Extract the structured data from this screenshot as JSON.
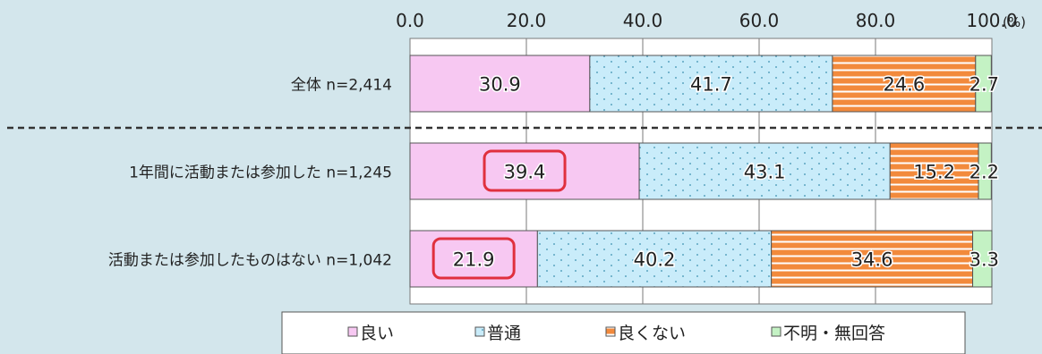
{
  "chart_data": {
    "type": "bar",
    "orientation": "horizontal",
    "stacked": true,
    "unit_label": "(%)",
    "xlim": [
      0,
      100
    ],
    "ticks": [
      "0.0",
      "20.0",
      "40.0",
      "60.0",
      "80.0",
      "100.0"
    ],
    "categories": [
      "全体 n=2,414",
      "1年間に活動または参加した n=1,245",
      "活動または参加したものはない n=1,042"
    ],
    "series": [
      {
        "name": "良い",
        "values": [
          30.9,
          39.4,
          21.9
        ],
        "color": "#f7c8f2",
        "pattern": "solid"
      },
      {
        "name": "普通",
        "values": [
          41.7,
          43.1,
          40.2
        ],
        "color": "#c9ecfa",
        "pattern": "dots"
      },
      {
        "name": "良くない",
        "values": [
          24.6,
          15.2,
          34.6
        ],
        "color": "#f28a3c",
        "pattern": "horizontal-stripes"
      },
      {
        "name": "不明・無回答",
        "values": [
          2.7,
          2.2,
          3.3
        ],
        "color": "#c4f2c4",
        "pattern": "solid"
      }
    ],
    "value_labels": [
      [
        "30.9",
        "41.7",
        "24.6",
        "2.7"
      ],
      [
        "39.4",
        "43.1",
        "15.2",
        "2.2"
      ],
      [
        "21.9",
        "40.2",
        "34.6",
        "3.3"
      ]
    ],
    "highlighted": [
      {
        "category": 1,
        "series": 0
      },
      {
        "category": 2,
        "series": 0
      }
    ],
    "highlight_color": "#e0303e",
    "separator_after_category": 0,
    "legend_position": "bottom",
    "grid": true
  }
}
